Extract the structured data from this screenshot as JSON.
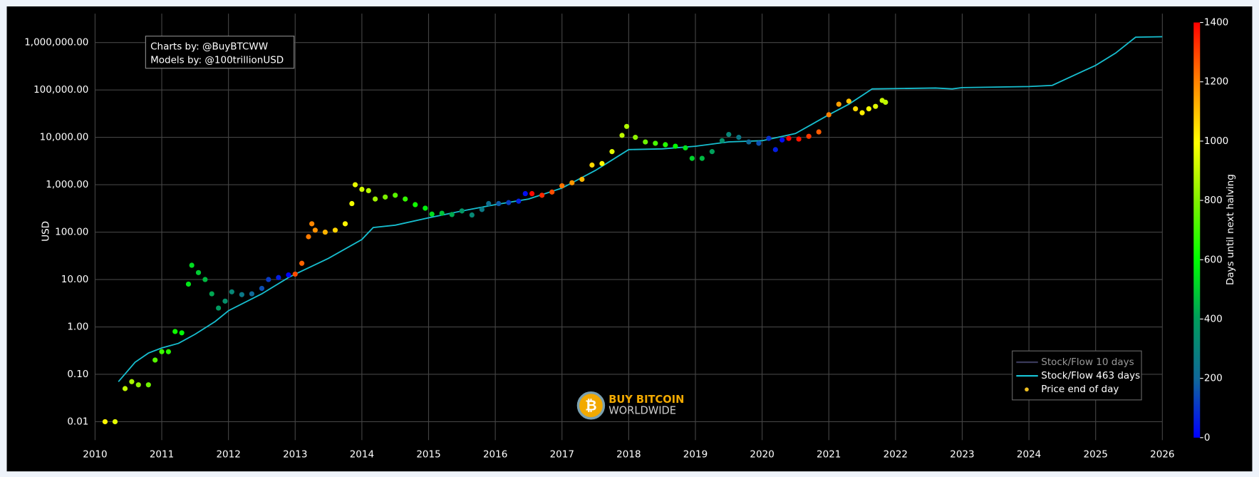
{
  "chart_data": {
    "type": "scatter",
    "ylabel": "USD",
    "log_y": true,
    "grid": true,
    "legend": "lower right",
    "xlim": [
      2010,
      2026
    ],
    "xticks": [
      2010,
      2011,
      2012,
      2013,
      2014,
      2015,
      2016,
      2017,
      2018,
      2019,
      2020,
      2021,
      2022,
      2023,
      2024,
      2025,
      2026
    ],
    "ylim": [
      0.0041,
      4070000
    ],
    "yticks": [
      0.01,
      {
        "value": 0.1,
        "label": "0.10"
      },
      {
        "value": 1,
        "label": "1.00"
      },
      {
        "value": 10,
        "label": "10.00"
      },
      {
        "value": 100,
        "label": "100.00"
      },
      {
        "value": 1000,
        "label": "1,000.00"
      },
      {
        "value": 10000,
        "label": "10,000.00"
      },
      {
        "value": 100000,
        "label": "100,000.00"
      },
      {
        "value": 1000000,
        "label": "1,000,000.00"
      }
    ],
    "annotations": [
      "Charts by: @BuyBTCWW",
      "Models by: @100trillionUSD"
    ],
    "logo": [
      "BUY BITCOIN",
      "WORLDWIDE"
    ],
    "colorbar": {
      "title": "Days until next halving",
      "lim": [
        0,
        1400
      ],
      "ticks": [
        0,
        200,
        400,
        600,
        800,
        1000,
        1200,
        1400
      ],
      "colorscale": [
        [
          0,
          "#0000ff"
        ],
        [
          0.14,
          "#10679a"
        ],
        [
          0.29,
          "#009f5a"
        ],
        [
          0.43,
          "#00ff00"
        ],
        [
          0.57,
          "#80f000"
        ],
        [
          0.71,
          "#ffff00"
        ],
        [
          0.86,
          "#ff8000"
        ],
        [
          1,
          "#ff0000"
        ]
      ]
    },
    "series": [
      {
        "name": "Stock/Flow 10 days",
        "kind": "line",
        "color": "#3a3a5a",
        "visible": false
      },
      {
        "name": "Stock/Flow 463 days",
        "kind": "line",
        "color": "#17becf",
        "x": [
          2010.35,
          2010.6,
          2010.8,
          2011.0,
          2011.25,
          2011.5,
          2011.8,
          2012.0,
          2012.5,
          2012.9,
          2013.0,
          2013.5,
          2014.0,
          2014.17,
          2014.5,
          2015.0,
          2015.5,
          2016.0,
          2016.5,
          2017.0,
          2017.5,
          2018.0,
          2018.5,
          2019.0,
          2019.5,
          2020.0,
          2020.5,
          2021.0,
          2021.3,
          2021.65,
          2022.0,
          2022.6,
          2022.85,
          2023.0,
          2024.0,
          2024.35,
          2025.0,
          2025.3,
          2025.6,
          2026.0
        ],
        "values": [
          0.07,
          0.18,
          0.28,
          0.36,
          0.45,
          0.7,
          1.3,
          2.2,
          5,
          11,
          13,
          28,
          70,
          125,
          140,
          200,
          280,
          380,
          500,
          850,
          2000,
          5500,
          5700,
          6500,
          8000,
          8500,
          12000,
          30000,
          50000,
          105000,
          107000,
          110000,
          105000,
          112000,
          118000,
          125000,
          330000,
          600000,
          1300000,
          1330000
        ]
      },
      {
        "name": "Price end of day",
        "kind": "markers",
        "color": "#f0c020",
        "x": [
          2010.15,
          2010.3,
          2010.45,
          2010.55,
          2010.65,
          2010.8,
          2010.9,
          2011.0,
          2011.1,
          2011.2,
          2011.3,
          2011.4,
          2011.45,
          2011.55,
          2011.65,
          2011.75,
          2011.85,
          2011.95,
          2012.05,
          2012.2,
          2012.35,
          2012.5,
          2012.6,
          2012.75,
          2012.9,
          2013.0,
          2013.1,
          2013.2,
          2013.25,
          2013.3,
          2013.45,
          2013.6,
          2013.75,
          2013.85,
          2013.9,
          2014.0,
          2014.1,
          2014.2,
          2014.35,
          2014.5,
          2014.65,
          2014.8,
          2014.95,
          2015.05,
          2015.2,
          2015.35,
          2015.5,
          2015.65,
          2015.8,
          2015.9,
          2016.05,
          2016.2,
          2016.35,
          2016.45,
          2016.55,
          2016.7,
          2016.85,
          2017.0,
          2017.15,
          2017.3,
          2017.45,
          2017.6,
          2017.75,
          2017.9,
          2017.97,
          2018.1,
          2018.25,
          2018.4,
          2018.55,
          2018.7,
          2018.85,
          2018.95,
          2019.1,
          2019.25,
          2019.4,
          2019.5,
          2019.65,
          2019.8,
          2019.95,
          2020.1,
          2020.2,
          2020.3,
          2020.4,
          2020.55,
          2020.7,
          2020.85,
          2021.0,
          2021.15,
          2021.3,
          2021.4,
          2021.5,
          2021.6,
          2021.7,
          2021.8,
          2021.85
        ],
        "values": [
          0.01,
          0.01,
          0.05,
          0.07,
          0.06,
          0.06,
          0.2,
          0.3,
          0.3,
          0.8,
          0.75,
          8,
          20,
          14,
          10,
          5,
          2.5,
          3.5,
          5.5,
          4.8,
          5,
          6.5,
          10,
          11,
          12.5,
          13,
          22,
          80,
          150,
          110,
          100,
          110,
          150,
          400,
          1000,
          800,
          750,
          500,
          550,
          600,
          500,
          380,
          320,
          240,
          250,
          235,
          280,
          230,
          300,
          400,
          400,
          420,
          450,
          650,
          650,
          600,
          700,
          950,
          1100,
          1300,
          2600,
          2800,
          5000,
          11000,
          17000,
          10000,
          8000,
          7500,
          7000,
          6500,
          6000,
          3600,
          3600,
          5000,
          8500,
          11500,
          10000,
          8000,
          7500,
          9500,
          5500,
          8800,
          9500,
          9200,
          10500,
          13000,
          30000,
          50000,
          58000,
          40000,
          33000,
          40000,
          45000,
          60000,
          55000
        ],
        "color_values": [
          1007,
          953,
          898,
          861,
          825,
          770,
          734,
          697,
          661,
          624,
          588,
          551,
          533,
          496,
          460,
          423,
          387,
          350,
          314,
          259,
          204,
          150,
          113,
          58,
          4,
          1285,
          1248,
          1212,
          1194,
          1175,
          1120,
          1066,
          1011,
          974,
          956,
          920,
          883,
          847,
          792,
          737,
          682,
          628,
          573,
          536,
          482,
          427,
          372,
          318,
          263,
          226,
          172,
          117,
          62,
          26,
          1391,
          1336,
          1281,
          1223,
          1168,
          1113,
          1059,
          1004,
          949,
          894,
          869,
          821,
          767,
          712,
          657,
          602,
          548,
          511,
          460,
          405,
          350,
          314,
          259,
          204,
          150,
          95,
          58,
          22,
          1424,
          1369,
          1314,
          1259,
          1204,
          1150,
          1095,
          1059,
          1022,
          985,
          949,
          912,
          894
        ]
      }
    ]
  }
}
